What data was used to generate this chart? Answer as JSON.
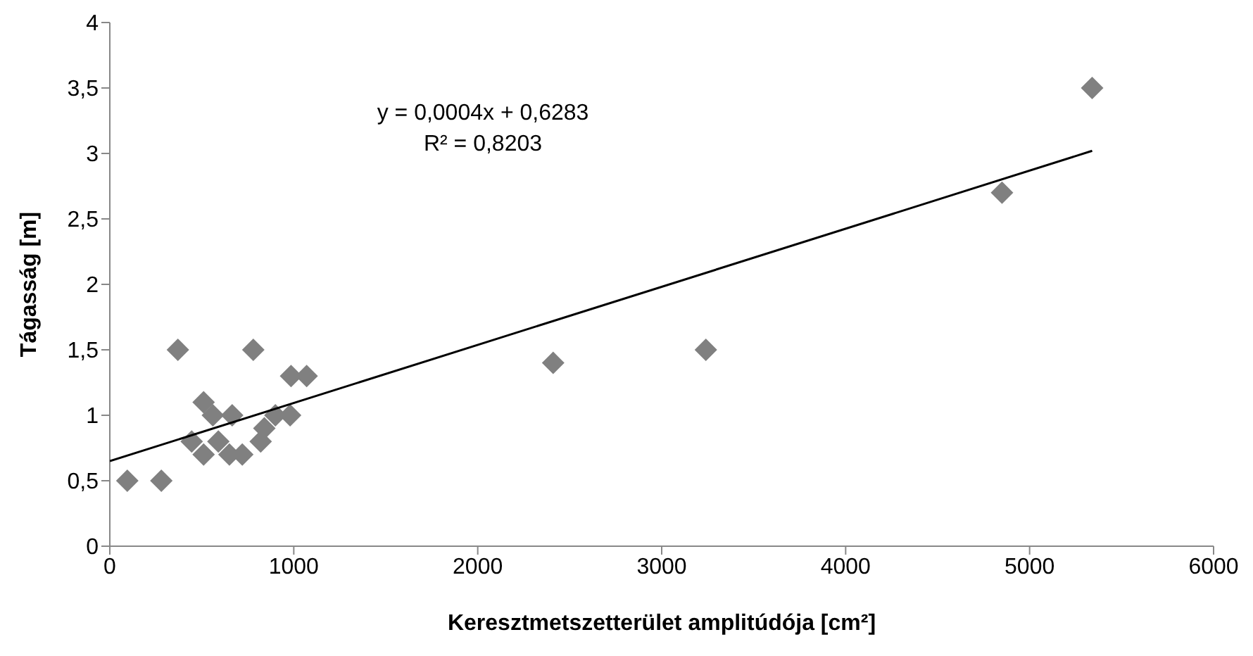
{
  "chart_data": {
    "type": "scatter",
    "xlabel": "Keresztmetszetterület amplitúdója [cm²]",
    "ylabel": "Tágasság [m]",
    "annotations": [
      "y = 0,0004x + 0,6283",
      "R² = 0,8203"
    ],
    "xlim": [
      0,
      6000
    ],
    "xticks": [
      0,
      1000,
      2000,
      3000,
      4000,
      5000,
      6000
    ],
    "ylim": [
      0,
      4
    ],
    "yticks": [
      0,
      {
        "value": 0.5,
        "label": "0,5"
      },
      1,
      {
        "value": 1.5,
        "label": "1,5"
      },
      2,
      {
        "value": 2.5,
        "label": "2,5"
      },
      3,
      {
        "value": 3.5,
        "label": "3,5"
      },
      4
    ],
    "marker": "diamond",
    "series": [
      {
        "type": "scatter",
        "color": "#808080",
        "x": [
          95,
          280,
          370,
          780,
          985,
          1070,
          510,
          560,
          665,
          445,
          510,
          590,
          650,
          720,
          820,
          840,
          900,
          980,
          2410,
          3240,
          4850,
          5340
        ],
        "values": [
          0.5,
          0.5,
          1.5,
          1.5,
          1.3,
          1.3,
          1.1,
          1.0,
          1.0,
          0.8,
          0.7,
          0.8,
          0.7,
          0.7,
          0.8,
          0.9,
          1.0,
          1.0,
          1.4,
          1.5,
          2.7,
          3.5
        ]
      },
      {
        "type": "line",
        "color": "#000000",
        "marker": "none",
        "x": [
          0,
          5340
        ],
        "values": [
          0.65,
          3.02
        ]
      }
    ]
  }
}
